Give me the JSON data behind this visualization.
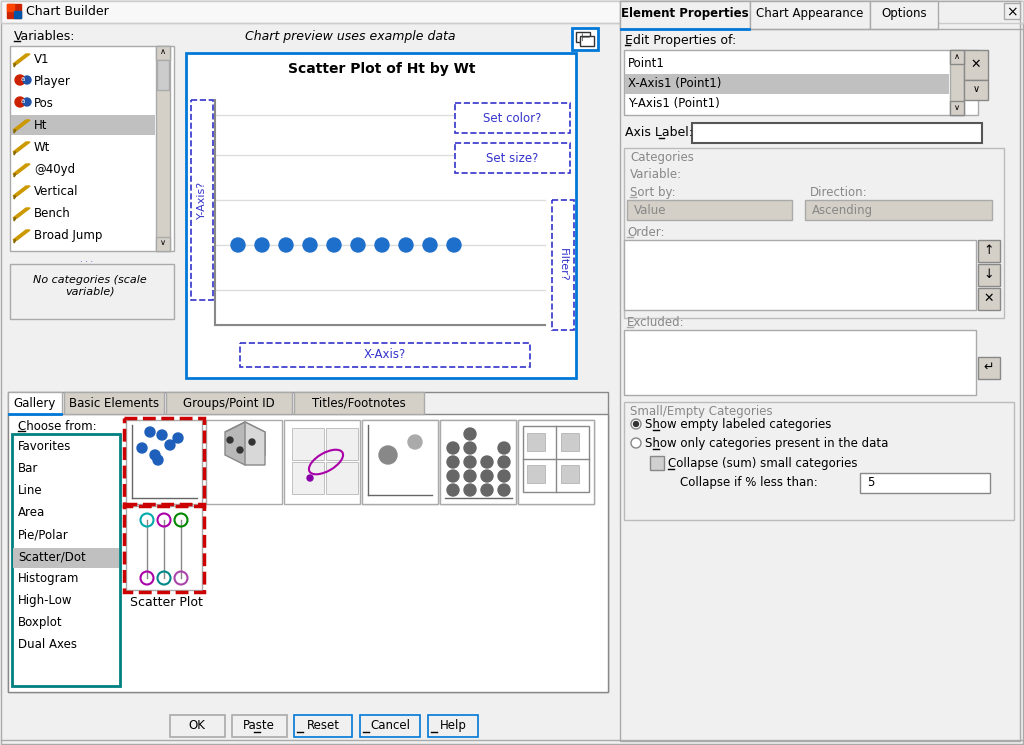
{
  "title": "Chart Builder",
  "bg_color": "#f0f0f0",
  "white": "#ffffff",
  "light_gray": "#d4d0c8",
  "mid_gray": "#c0c0c0",
  "dark_gray": "#808080",
  "blue_text": "#3333cc",
  "blue_border": "#0078d7",
  "teal_border": "#008080",
  "red_dashed": "#cc0000",
  "selected_bg": "#b8b8b8",
  "variables": [
    "V1",
    "Player",
    "Pos",
    "Ht",
    "Wt",
    "@40yd",
    "Vertical",
    "Bench",
    "Broad Jump"
  ],
  "selected_var_idx": 3,
  "chart_title": "Scatter Plot of Ht by Wt",
  "gallery_items": [
    "Favorites",
    "Bar",
    "Line",
    "Area",
    "Pie/Polar",
    "Scatter/Dot",
    "Histogram",
    "High-Low",
    "Boxplot",
    "Dual Axes"
  ],
  "selected_gallery_idx": 5,
  "prop_items": [
    "Point1",
    "X-Axis1 (Point1)",
    "Y-Axis1 (Point1)"
  ],
  "selected_prop_idx": 1,
  "right_tabs": [
    "Element Properties",
    "Chart Appearance",
    "Options"
  ],
  "tab_labels": [
    "Gallery",
    "Basic Elements",
    "Groups/Point ID",
    "Titles/Footnotes"
  ],
  "dot_color": "#1e6fcc"
}
